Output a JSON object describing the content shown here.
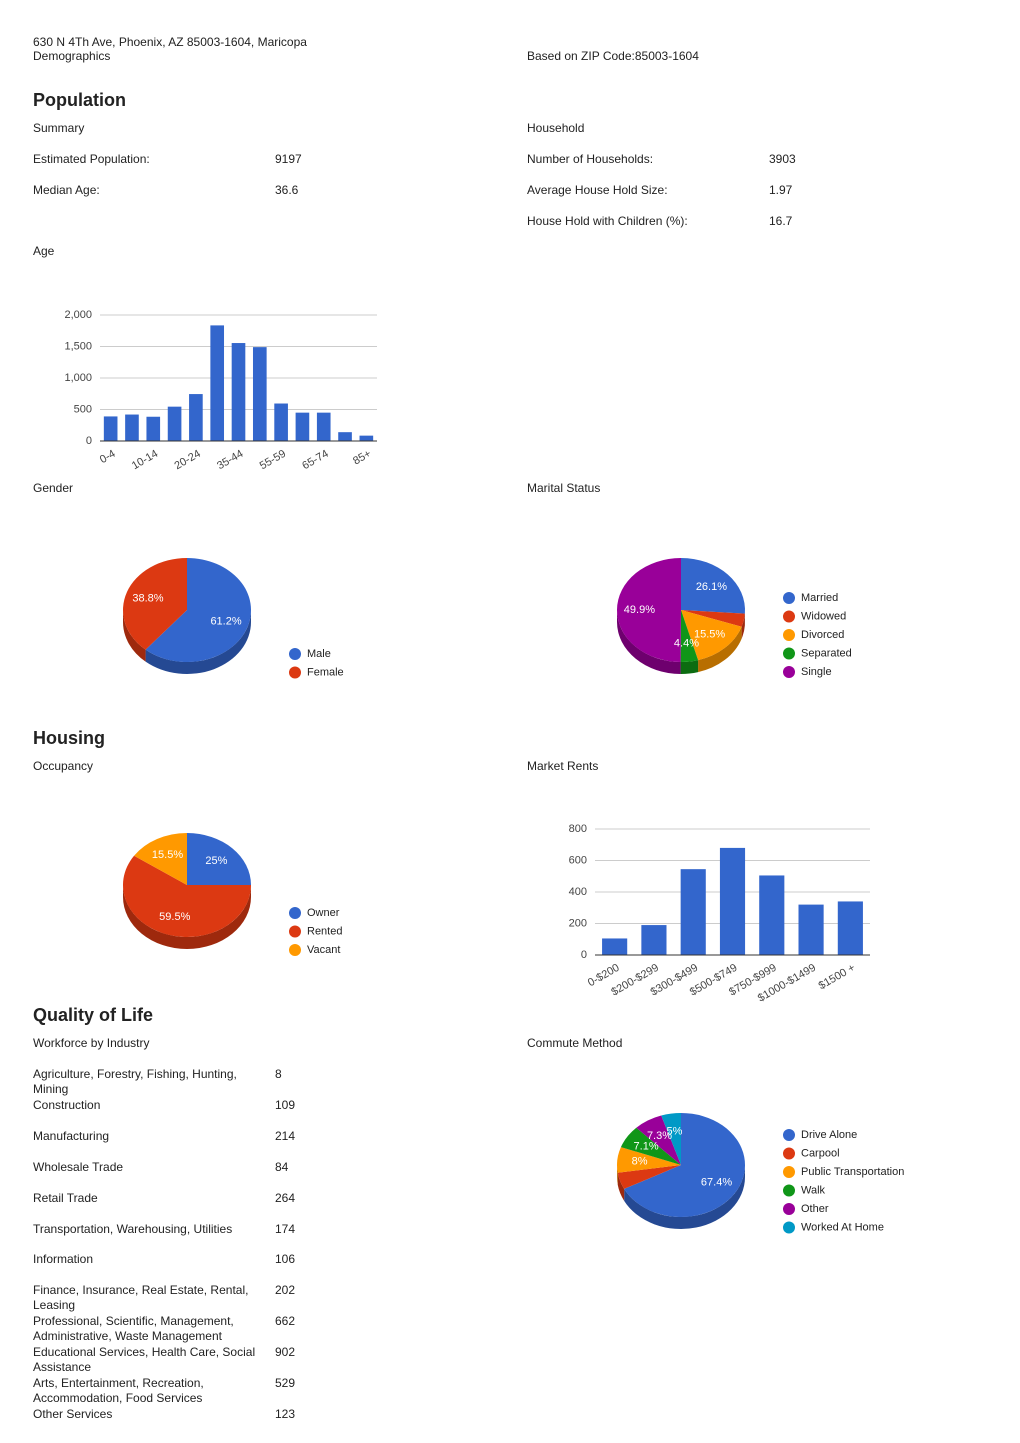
{
  "header": {
    "address": "630 N 4Th Ave, Phoenix, AZ 85003-1604, Maricopa",
    "subtitle": "Demographics",
    "basis": "Based on ZIP Code:85003-1604"
  },
  "population": {
    "title": "Population",
    "summary": {
      "title": "Summary",
      "rows": [
        [
          "Estimated Population:",
          9197
        ],
        [
          "Median Age:",
          36.6
        ]
      ]
    },
    "household": {
      "title": "Household",
      "rows": [
        [
          "Number of Households:",
          3903
        ],
        [
          "Average House Hold Size:",
          1.97
        ],
        [
          "House Hold with Children (%):",
          16.7
        ]
      ]
    }
  },
  "housing": {
    "title": "Housing"
  },
  "quality": {
    "title": "Quality of Life",
    "workforce": {
      "title": "Workforce by Industry",
      "rows": [
        [
          "Agriculture, Forestry, Fishing, Hunting, Mining",
          8
        ],
        [
          "Construction",
          109
        ],
        [
          "Manufacturing",
          214
        ],
        [
          "Wholesale Trade",
          84
        ],
        [
          "Retail Trade",
          264
        ],
        [
          "Transportation, Warehousing, Utilities",
          174
        ],
        [
          "Information",
          106
        ],
        [
          "Finance, Insurance, Real Estate, Rental, Leasing",
          202
        ],
        [
          "Professional, Scientific, Management, Administrative, Waste Management",
          662
        ],
        [
          "Educational Services, Health Care, Social Assistance",
          902
        ],
        [
          "Arts, Entertainment, Recreation, Accommodation, Food Services",
          529
        ],
        [
          "Other Services",
          123
        ]
      ]
    }
  },
  "chart_data": [
    {
      "type": "bar",
      "title": "Age",
      "categories": [
        "0-4",
        null,
        "10-14",
        null,
        "20-24",
        null,
        "35-44",
        null,
        "55-59",
        null,
        "65-74",
        null,
        "85+"
      ],
      "values": [
        390,
        420,
        385,
        545,
        745,
        1835,
        1555,
        1490,
        595,
        450,
        450,
        140,
        85
      ],
      "color": "#3366cc",
      "ylim": [
        0,
        2000
      ],
      "yticks": [
        0,
        500,
        {
          "value": 1000,
          "label": "1,000"
        },
        {
          "value": 1500,
          "label": "1,500"
        },
        {
          "value": 2000,
          "label": "2,000"
        }
      ],
      "grid": true
    },
    {
      "type": "pie",
      "title": "Gender",
      "categories": [
        "Male",
        "Female"
      ],
      "values": [
        61.2,
        38.8
      ],
      "value_labels": [
        "61.2%",
        "38.8%"
      ],
      "colors": [
        "#3366cc",
        "#dc3912"
      ]
    },
    {
      "type": "pie",
      "title": "Marital Status",
      "categories": [
        "Married",
        "Widowed",
        "Divorced",
        "Separated",
        "Single"
      ],
      "values": [
        26.1,
        4.1,
        15.5,
        4.4,
        49.9
      ],
      "value_labels": [
        "26.1%",
        null,
        "15.5%",
        "4.4%",
        "49.9%"
      ],
      "colors": [
        "#3366cc",
        "#dc3912",
        "#ff9900",
        "#109618",
        "#990099"
      ]
    },
    {
      "type": "pie",
      "title": "Occupancy",
      "categories": [
        "Owner",
        "Rented",
        "Vacant"
      ],
      "values": [
        25,
        59.5,
        15.5
      ],
      "value_labels": [
        "25%",
        "59.5%",
        "15.5%"
      ],
      "colors": [
        "#3366cc",
        "#dc3912",
        "#ff9900"
      ]
    },
    {
      "type": "bar",
      "title": "Market Rents",
      "categories": [
        "0-$200",
        "$200-$299",
        "$300-$499",
        "$500-$749",
        "$750-$999",
        "$1000-$1499",
        "$1500 +"
      ],
      "values": [
        105,
        190,
        545,
        680,
        505,
        320,
        340
      ],
      "color": "#3366cc",
      "ylim": [
        0,
        800
      ],
      "yticks": [
        0,
        200,
        400,
        600,
        800
      ],
      "grid": true
    },
    {
      "type": "pie",
      "title": "Commute Method",
      "categories": [
        "Drive Alone",
        "Carpool",
        "Public Transportation",
        "Walk",
        "Other",
        "Worked At Home"
      ],
      "values": [
        67.4,
        5.2,
        8,
        7.1,
        7.3,
        5
      ],
      "value_labels": [
        "67.4%",
        null,
        "8%",
        "7.1%",
        "7.3%",
        "5%"
      ],
      "colors": [
        "#3366cc",
        "#dc3912",
        "#ff9900",
        "#109618",
        "#990099",
        "#0099c6"
      ]
    }
  ]
}
